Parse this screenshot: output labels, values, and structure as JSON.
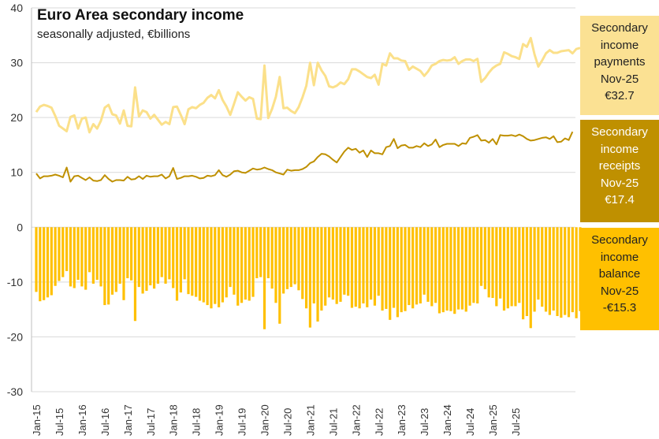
{
  "header": {
    "title": "Euro Area secondary income",
    "subtitle": "seasonally adjusted, €billions"
  },
  "callouts": {
    "payments": {
      "line1": "Secondary",
      "line2": "income",
      "line3": "payments",
      "period": "Nov-25",
      "value": "€32.7"
    },
    "receipts": {
      "line1": "Secondary",
      "line2": "income",
      "line3": "receipts",
      "period": "Nov-25",
      "value": "€17.4"
    },
    "balance": {
      "line1": "Secondary",
      "line2": "income",
      "line3": "balance",
      "period": "Nov-25",
      "value": "-€15.3"
    }
  },
  "colors": {
    "payments": "#fbe08a",
    "receipts": "#bf9000",
    "balance": "#ffc000",
    "grid": "#d9d9d9",
    "axis": "#bfbfbf"
  },
  "chart_data": {
    "type": "line",
    "title": "Euro Area secondary income",
    "subtitle": "seasonally adjusted, €billions",
    "xlabel": "",
    "ylabel": "",
    "ylim": [
      -30,
      40
    ],
    "yticks": [
      -30,
      -20,
      -10,
      0,
      10,
      20,
      30,
      40
    ],
    "grid": true,
    "legend": "right (value callouts)",
    "start": "Jan-15",
    "tick_labels": [
      "Jan-15",
      "Jul-15",
      "Jan-16",
      "Jul-16",
      "Jan-17",
      "Jul-17",
      "Jan-18",
      "Jul-18",
      "Jan-19",
      "Jul-19",
      "Jan-20",
      "Jul-20",
      "Jan-21",
      "Jul-21",
      "Jan-22",
      "Jul-22",
      "Jan-23",
      "Jul-23",
      "Jan-24",
      "Jul-24",
      "Jan-25",
      "Jul-25"
    ],
    "series": [
      {
        "name": "Secondary income payments",
        "type": "line",
        "values": [
          21.0,
          22.0,
          22.3,
          22.1,
          21.8,
          20.3,
          18.5,
          18.0,
          17.5,
          20.1,
          20.4,
          18.0,
          19.8,
          20.0,
          17.3,
          18.8,
          18.0,
          19.4,
          21.8,
          22.3,
          20.6,
          20.4,
          18.9,
          21.3,
          18.5,
          18.4,
          25.5,
          20.2,
          21.3,
          21.0,
          19.8,
          20.5,
          19.6,
          18.7,
          19.2,
          18.8,
          21.9,
          22.0,
          20.5,
          18.8,
          21.5,
          21.9,
          21.7,
          22.3,
          22.7,
          23.6,
          24.1,
          23.5,
          25.0,
          23.2,
          22.0,
          20.5,
          22.5,
          24.6,
          23.8,
          23.1,
          23.7,
          23.4,
          19.8,
          19.7,
          29.5,
          19.9,
          21.6,
          23.8,
          27.4,
          21.7,
          21.8,
          21.2,
          20.8,
          21.9,
          23.7,
          25.8,
          30.0,
          25.9,
          30.0,
          28.6,
          27.6,
          25.7,
          25.5,
          25.8,
          26.4,
          26.1,
          27.0,
          28.8,
          28.8,
          28.4,
          27.9,
          27.4,
          27.2,
          27.8,
          26.0,
          29.8,
          29.5,
          31.7,
          30.8,
          30.8,
          30.4,
          30.3,
          28.7,
          29.3,
          28.9,
          28.5,
          27.6,
          28.4,
          29.5,
          29.8,
          30.3,
          30.5,
          30.4,
          30.5,
          31.0,
          29.8,
          30.3,
          30.6,
          30.6,
          30.3,
          30.7,
          26.5,
          27.2,
          28.2,
          29.0,
          29.5,
          29.8,
          31.9,
          31.6,
          31.2,
          31.0,
          30.7,
          33.4,
          32.9,
          34.5,
          31.5,
          29.3,
          30.4,
          31.7,
          32.3,
          31.8,
          31.8,
          32.1,
          32.2,
          32.3,
          31.7,
          32.5,
          32.7
        ]
      },
      {
        "name": "Secondary income receipts",
        "type": "line",
        "values": [
          9.8,
          8.9,
          9.3,
          9.3,
          9.4,
          9.6,
          9.4,
          9.1,
          10.9,
          8.3,
          9.3,
          9.4,
          9.0,
          8.6,
          9.1,
          8.5,
          8.4,
          8.6,
          9.5,
          8.8,
          8.3,
          8.6,
          8.6,
          8.5,
          9.2,
          8.7,
          8.8,
          9.3,
          8.8,
          9.4,
          9.2,
          9.3,
          9.3,
          9.6,
          8.9,
          9.3,
          10.8,
          8.8,
          9.0,
          9.3,
          9.3,
          9.4,
          9.2,
          8.9,
          9.0,
          9.4,
          9.3,
          9.5,
          10.4,
          9.5,
          9.2,
          9.6,
          10.2,
          10.3,
          10.0,
          9.9,
          10.3,
          10.7,
          10.5,
          10.6,
          10.9,
          10.6,
          10.4,
          10.0,
          9.8,
          9.6,
          10.5,
          10.3,
          10.4,
          10.4,
          10.6,
          11.0,
          11.7,
          12.0,
          12.8,
          13.4,
          13.3,
          12.9,
          12.3,
          11.8,
          12.8,
          13.8,
          14.5,
          14.1,
          14.3,
          13.6,
          14.0,
          12.8,
          14.0,
          13.5,
          13.5,
          13.3,
          14.6,
          14.8,
          16.1,
          14.4,
          14.9,
          15.0,
          14.5,
          14.5,
          14.8,
          14.6,
          15.3,
          14.8,
          15.1,
          16.0,
          14.6,
          15.0,
          15.2,
          15.2,
          15.2,
          14.8,
          15.3,
          15.2,
          16.3,
          16.5,
          16.8,
          15.8,
          15.9,
          15.4,
          16.1,
          15.1,
          16.8,
          16.7,
          16.7,
          16.8,
          16.6,
          16.9,
          16.6,
          16.1,
          15.8,
          15.9,
          16.1,
          16.3,
          16.4,
          16.1,
          16.6,
          15.5,
          15.6,
          16.2,
          15.9,
          17.4
        ]
      },
      {
        "name": "Secondary income balance",
        "type": "bar",
        "values": [
          -11.8,
          -13.5,
          -13.3,
          -12.8,
          -12.4,
          -10.7,
          -9.8,
          -9.1,
          -8.0,
          -10.8,
          -11.1,
          -9.6,
          -10.8,
          -11.4,
          -8.2,
          -10.3,
          -9.6,
          -10.8,
          -14.2,
          -14.1,
          -12.3,
          -11.8,
          -10.3,
          -13.3,
          -9.3,
          -9.7,
          -17.1,
          -10.9,
          -12.1,
          -11.6,
          -10.6,
          -11.2,
          -10.3,
          -9.1,
          -10.3,
          -9.5,
          -11.1,
          -13.4,
          -11.9,
          -9.5,
          -12.2,
          -12.5,
          -12.7,
          -13.4,
          -13.7,
          -14.2,
          -14.8,
          -14.0,
          -14.6,
          -13.7,
          -12.8,
          -10.9,
          -12.3,
          -14.3,
          -13.8,
          -13.2,
          -13.4,
          -12.7,
          -9.3,
          -9.1,
          -18.6,
          -9.3,
          -11.2,
          -13.8,
          -17.6,
          -12.1,
          -11.3,
          -10.9,
          -10.4,
          -11.5,
          -13.1,
          -14.8,
          -18.3,
          -13.9,
          -17.2,
          -15.2,
          -14.3,
          -12.8,
          -13.2,
          -14.0,
          -13.6,
          -12.3,
          -12.5,
          -14.7,
          -14.5,
          -14.8,
          -13.9,
          -14.6,
          -13.2,
          -14.3,
          -12.5,
          -15.2,
          -14.9,
          -16.9,
          -14.7,
          -16.4,
          -15.5,
          -15.3,
          -14.2,
          -14.8,
          -14.1,
          -13.9,
          -12.3,
          -13.6,
          -14.4,
          -13.8,
          -15.7,
          -15.5,
          -15.2,
          -15.3,
          -15.8,
          -15.0,
          -15.0,
          -15.4,
          -14.3,
          -13.8,
          -13.9,
          -10.7,
          -11.3,
          -12.8,
          -12.9,
          -14.4,
          -13.0,
          -15.2,
          -14.8,
          -14.4,
          -14.4,
          -13.8,
          -16.8,
          -16.2,
          -18.4,
          -15.4,
          -13.2,
          -14.5,
          -15.4,
          -16.0,
          -15.2,
          -16.2,
          -16.5,
          -16.0,
          -16.4,
          -15.5,
          -16.6,
          -15.3
        ]
      }
    ]
  }
}
